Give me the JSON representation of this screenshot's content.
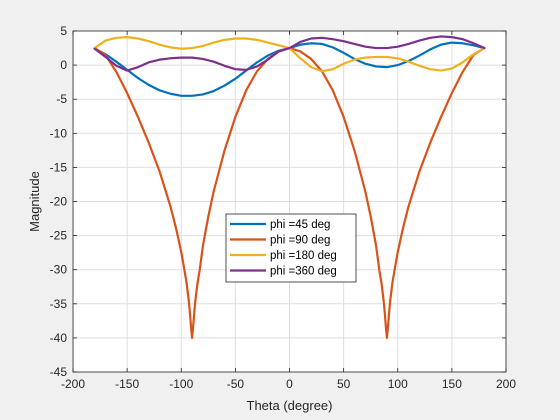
{
  "chart_data": {
    "type": "line",
    "title": "",
    "xlabel": "Theta (degree)",
    "ylabel": "Magnitude",
    "xlim": [
      -200,
      200
    ],
    "ylim": [
      -45,
      5
    ],
    "xticks": [
      -200,
      -150,
      -100,
      -50,
      0,
      50,
      100,
      150,
      200
    ],
    "yticks": [
      5,
      0,
      -5,
      -10,
      -15,
      -20,
      -25,
      -30,
      -35,
      -40,
      -45
    ],
    "grid": true,
    "legend_position": "center",
    "colors": [
      "#0072BD",
      "#D95319",
      "#EDB120",
      "#7E2F8E"
    ],
    "series": [
      {
        "name": "phi =45 deg",
        "x": [
          -180,
          -170,
          -160,
          -150,
          -140,
          -130,
          -120,
          -110,
          -100,
          -90,
          -80,
          -70,
          -60,
          -50,
          -40,
          -30,
          -20,
          -10,
          0,
          10,
          20,
          30,
          40,
          50,
          60,
          70,
          80,
          90,
          100,
          110,
          120,
          130,
          140,
          150,
          160,
          170,
          180
        ],
        "values": [
          2.4,
          1.6,
          0.5,
          -0.7,
          -1.9,
          -2.9,
          -3.7,
          -4.2,
          -4.5,
          -4.5,
          -4.3,
          -3.8,
          -3.0,
          -2.0,
          -0.8,
          0.4,
          1.4,
          2.1,
          2.5,
          3.0,
          3.2,
          3.1,
          2.6,
          1.8,
          0.9,
          0.2,
          -0.2,
          -0.3,
          0.0,
          0.6,
          1.4,
          2.3,
          3.0,
          3.3,
          3.2,
          2.9,
          2.5
        ]
      },
      {
        "name": "phi =90 deg",
        "x": [
          -180,
          -170,
          -160,
          -150,
          -140,
          -130,
          -120,
          -110,
          -105,
          -100,
          -97,
          -95,
          -93,
          -92,
          -91,
          -90,
          -89,
          -88,
          -87,
          -85,
          -83,
          -80,
          -75,
          -70,
          -60,
          -50,
          -40,
          -30,
          -20,
          -10,
          0,
          10,
          20,
          30,
          40,
          50,
          60,
          70,
          75,
          80,
          83,
          85,
          87,
          88,
          89,
          90,
          91,
          92,
          93,
          95,
          97,
          100,
          105,
          110,
          120,
          130,
          140,
          150,
          160,
          170,
          180
        ],
        "values": [
          2.5,
          1.5,
          -1.0,
          -4.1,
          -7.6,
          -11.4,
          -15.6,
          -20.7,
          -23.8,
          -27.4,
          -30.1,
          -32.0,
          -34.6,
          -36.3,
          -38.3,
          -40.0,
          -38.3,
          -36.3,
          -34.6,
          -32.0,
          -30.1,
          -26.5,
          -22.2,
          -18.5,
          -12.5,
          -7.6,
          -3.7,
          -0.9,
          0.9,
          2.0,
          2.5,
          2.0,
          0.9,
          -0.9,
          -3.7,
          -7.6,
          -12.5,
          -18.5,
          -22.2,
          -26.5,
          -30.1,
          -32.0,
          -34.6,
          -36.3,
          -38.3,
          -40.0,
          -38.3,
          -36.3,
          -34.6,
          -32.0,
          -30.1,
          -27.4,
          -23.8,
          -20.7,
          -15.6,
          -11.4,
          -7.6,
          -4.1,
          -1.0,
          1.5,
          2.5
        ]
      },
      {
        "name": "phi =180 deg",
        "x": [
          -180,
          -170,
          -160,
          -150,
          -140,
          -130,
          -120,
          -110,
          -100,
          -90,
          -80,
          -70,
          -60,
          -50,
          -40,
          -30,
          -20,
          -10,
          0,
          10,
          20,
          30,
          40,
          50,
          60,
          70,
          80,
          90,
          100,
          110,
          120,
          130,
          140,
          150,
          160,
          170,
          180
        ],
        "values": [
          2.5,
          3.6,
          4.0,
          4.1,
          3.9,
          3.5,
          3.0,
          2.6,
          2.4,
          2.5,
          2.8,
          3.3,
          3.7,
          3.9,
          3.9,
          3.7,
          3.3,
          2.9,
          2.5,
          1.0,
          -0.3,
          -0.9,
          -0.6,
          0.2,
          0.8,
          1.1,
          1.2,
          1.2,
          1.0,
          0.5,
          -0.1,
          -0.6,
          -0.8,
          -0.5,
          0.4,
          1.6,
          2.5
        ]
      },
      {
        "name": "phi =360 deg",
        "x": [
          -180,
          -170,
          -160,
          -150,
          -140,
          -130,
          -120,
          -110,
          -100,
          -90,
          -80,
          -70,
          -60,
          -50,
          -40,
          -30,
          -20,
          -10,
          0,
          10,
          20,
          30,
          40,
          50,
          60,
          70,
          80,
          90,
          100,
          110,
          120,
          130,
          140,
          150,
          160,
          170,
          180
        ],
        "values": [
          2.4,
          1.2,
          -0.1,
          -0.8,
          -0.3,
          0.4,
          0.8,
          1.0,
          1.1,
          1.1,
          0.9,
          0.5,
          -0.1,
          -0.6,
          -0.7,
          -0.2,
          0.8,
          2.0,
          2.5,
          3.4,
          3.9,
          4.0,
          3.8,
          3.5,
          3.1,
          2.7,
          2.5,
          2.5,
          2.7,
          3.1,
          3.6,
          4.0,
          4.2,
          4.1,
          3.8,
          3.2,
          2.5
        ]
      }
    ]
  }
}
